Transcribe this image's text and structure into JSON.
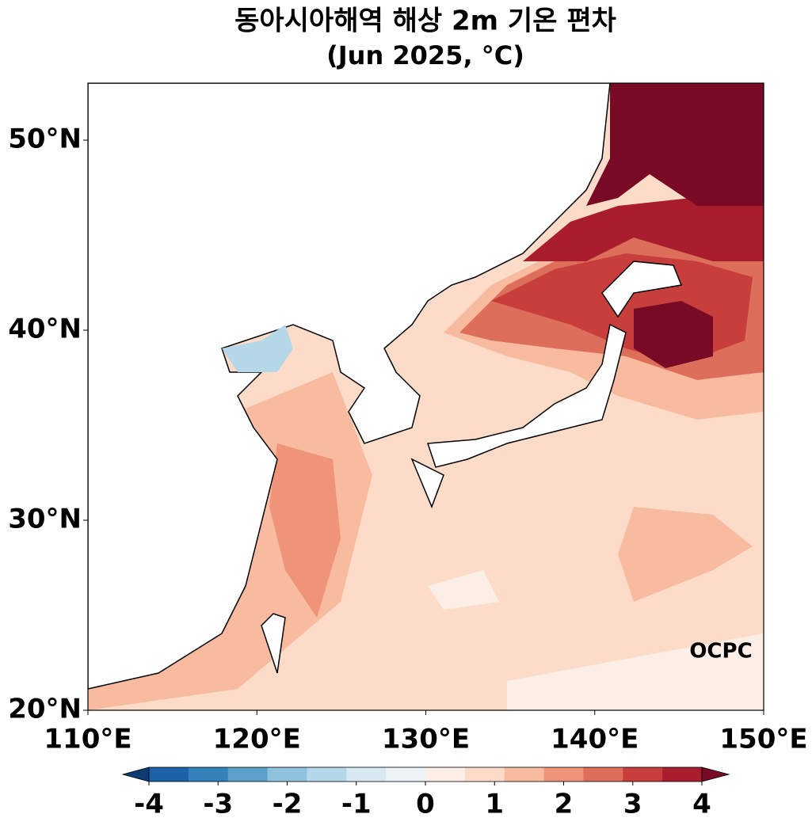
{
  "title": "동아시아해역 해상 2m 기온 편차",
  "subtitle": "(Jun 2025, °C)",
  "x_axis": {
    "lim": [
      110,
      150
    ],
    "ticks": [
      {
        "value": 110,
        "label": "110°E"
      },
      {
        "value": 120,
        "label": "120°E"
      },
      {
        "value": 130,
        "label": "130°E"
      },
      {
        "value": 140,
        "label": "140°E"
      },
      {
        "value": 150,
        "label": "150°E"
      }
    ]
  },
  "y_axis": {
    "lim": [
      20,
      53
    ],
    "ticks": [
      {
        "value": 20,
        "label": "20°N"
      },
      {
        "value": 30,
        "label": "30°N"
      },
      {
        "value": 40,
        "label": "40°N"
      },
      {
        "value": 50,
        "label": "50°N"
      }
    ]
  },
  "colorbar": {
    "lim": [
      -4,
      4
    ],
    "ticks": [
      -4,
      -3,
      -2,
      -1,
      0,
      1,
      2,
      3,
      4
    ],
    "colors": [
      "#0b3d74",
      "#1c62a8",
      "#3480b9",
      "#5b9fcb",
      "#8fc2dd",
      "#b6d7e8",
      "#d8e8f1",
      "#edf3f7",
      "#fbeee7",
      "#fcdcc8",
      "#f8bba0",
      "#ef9479",
      "#dd6e5a",
      "#c73e3c",
      "#a91d2f",
      "#780a25"
    ]
  },
  "logo": "OCPC"
}
